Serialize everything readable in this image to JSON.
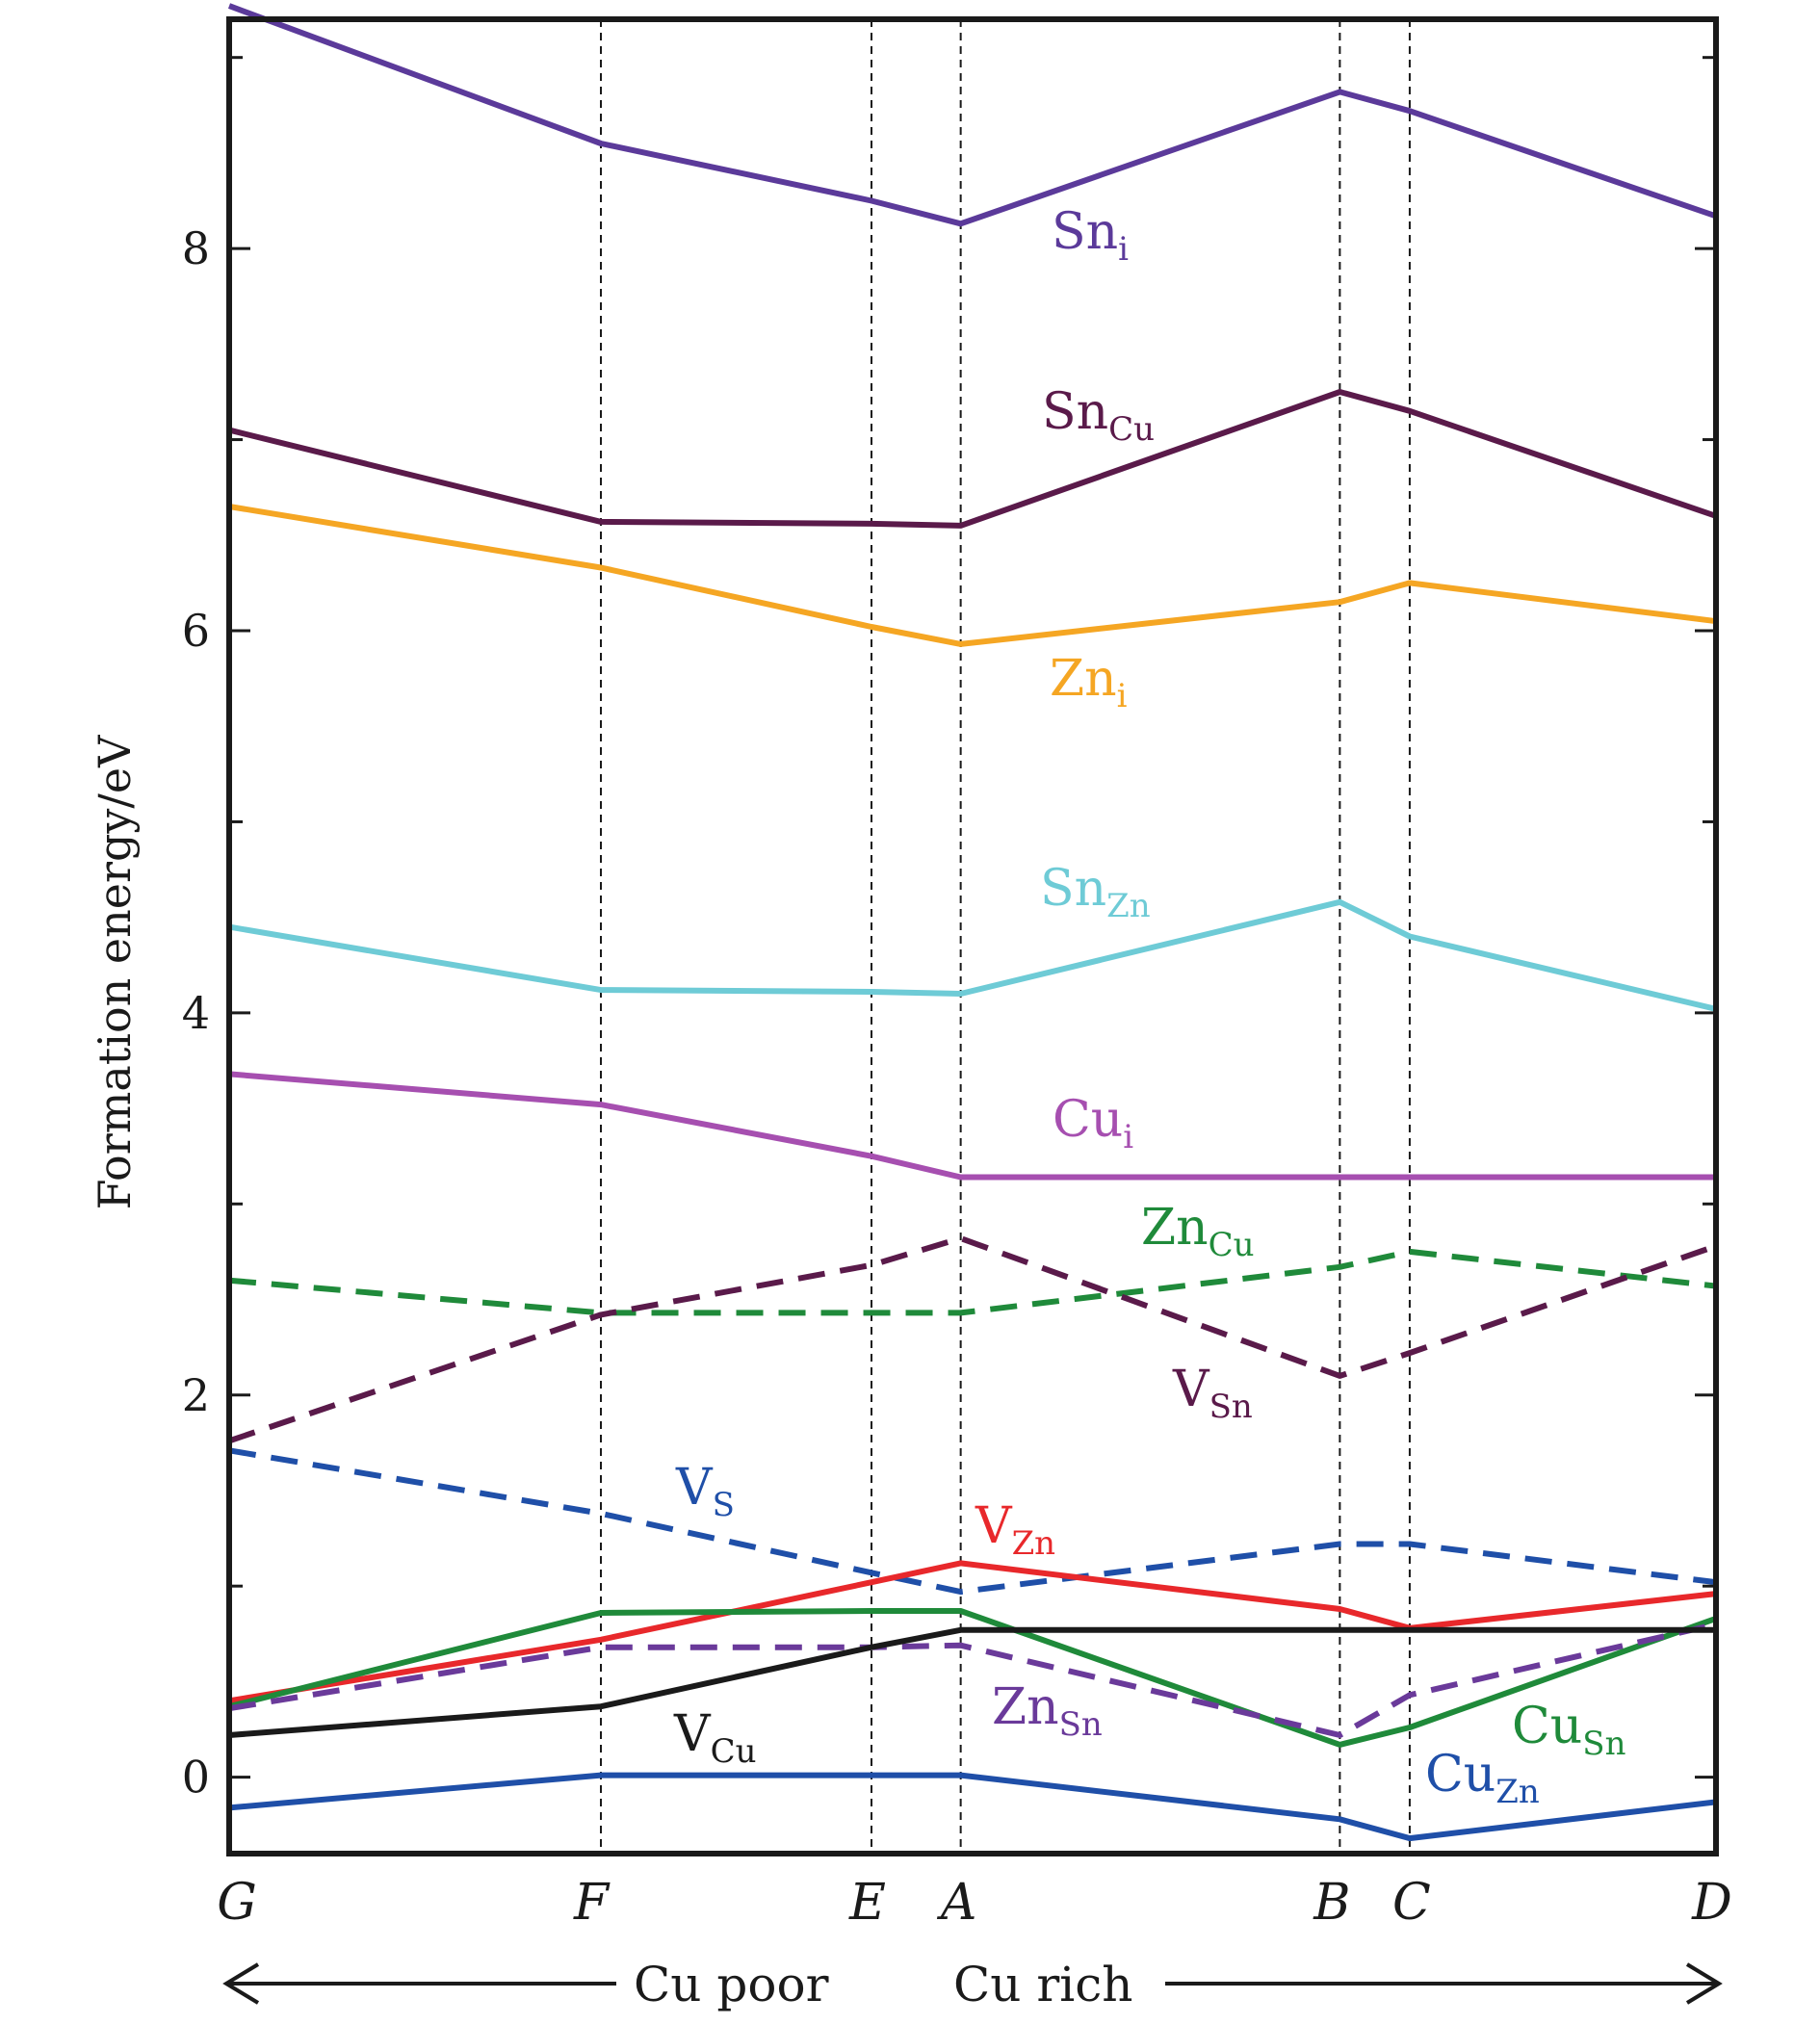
{
  "chart_data": {
    "type": "line",
    "ylabel": "Formation energy/eV",
    "ylim": [
      -0.4,
      9.2
    ],
    "yticks": [
      "0",
      "2",
      "4",
      "6",
      "8"
    ],
    "categories": [
      "G",
      "F",
      "E",
      "A",
      "B",
      "C",
      "D"
    ],
    "x": [
      0,
      0.25,
      0.432,
      0.492,
      0.747,
      0.794,
      1.0
    ],
    "vlines": [
      "F",
      "E",
      "A",
      "B",
      "C"
    ],
    "direction_labels": {
      "left": "Cu poor",
      "right": "Cu rich"
    },
    "series": [
      {
        "name": "Sn",
        "sub": "i",
        "color": "#5b3a9a",
        "dash": false,
        "values": [
          9.27,
          8.55,
          8.25,
          8.13,
          8.82,
          8.72,
          8.17
        ]
      },
      {
        "name": "Sn",
        "sub": "Cu",
        "color": "#5a1a4a",
        "dash": false,
        "values": [
          7.05,
          6.57,
          6.56,
          6.55,
          7.25,
          7.15,
          6.6
        ]
      },
      {
        "name": "Zn",
        "sub": "i",
        "color": "#f5a623",
        "dash": false,
        "values": [
          6.65,
          6.33,
          6.02,
          5.93,
          6.15,
          6.25,
          6.05
        ]
      },
      {
        "name": "Sn",
        "sub": "Zn",
        "color": "#6ecbd6",
        "dash": false,
        "values": [
          4.45,
          4.12,
          4.11,
          4.1,
          4.58,
          4.4,
          4.02
        ]
      },
      {
        "name": "Cu",
        "sub": "i",
        "color": "#a64fb0",
        "dash": false,
        "values": [
          3.68,
          3.52,
          3.25,
          3.14,
          3.14,
          3.14,
          3.14
        ]
      },
      {
        "name": "Zn",
        "sub": "Cu",
        "color": "#1f8a3a",
        "dash": true,
        "values": [
          2.6,
          2.43,
          2.43,
          2.43,
          2.67,
          2.75,
          2.57
        ]
      },
      {
        "name": "V",
        "sub": "Sn",
        "color": "#5a1a4a",
        "dash": true,
        "values": [
          1.76,
          2.42,
          2.68,
          2.82,
          2.1,
          2.22,
          2.78
        ]
      },
      {
        "name": "V",
        "sub": "S",
        "color": "#1f4fa8",
        "dash": true,
        "values": [
          1.71,
          1.38,
          1.07,
          0.97,
          1.22,
          1.22,
          1.02
        ]
      },
      {
        "name": "V",
        "sub": "Zn",
        "color": "#e8282b",
        "dash": false,
        "values": [
          0.4,
          0.72,
          1.02,
          1.12,
          0.88,
          0.78,
          0.96
        ]
      },
      {
        "name": "Cu",
        "sub": "Sn",
        "color": "#1f8a3a",
        "dash": false,
        "values": [
          0.37,
          0.86,
          0.87,
          0.87,
          0.17,
          0.26,
          0.83
        ]
      },
      {
        "name": "Zn",
        "sub": "Sn",
        "color": "#6a3a9a",
        "dash": true,
        "values": [
          0.36,
          0.68,
          0.68,
          0.69,
          0.22,
          0.43,
          0.8
        ]
      },
      {
        "name": "V",
        "sub": "Cu",
        "color": "#1a1a1a",
        "dash": false,
        "values": [
          0.22,
          0.37,
          0.68,
          0.77,
          0.77,
          0.77,
          0.77
        ]
      },
      {
        "name": "Cu",
        "sub": "Zn",
        "color": "#1f4fa8",
        "dash": false,
        "values": [
          -0.16,
          0.01,
          0.01,
          0.01,
          -0.22,
          -0.32,
          -0.13
        ]
      }
    ]
  }
}
